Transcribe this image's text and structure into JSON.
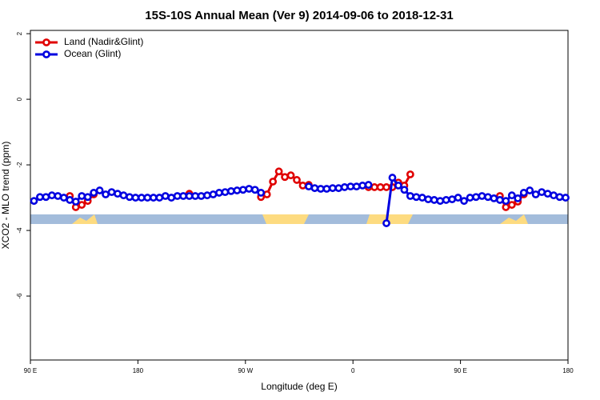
{
  "chart_data": {
    "type": "line",
    "title": "15S-10S Annual Mean (Ver 9)   2014-09-06 to 2018-12-31",
    "xlabel": "Longitude (deg E)",
    "ylabel": "XCO2 - MLO trend (ppm)",
    "x": [
      93,
      98,
      103,
      108,
      113,
      118,
      123,
      128,
      133,
      138,
      143,
      148,
      153,
      158,
      163,
      168,
      173,
      178,
      183,
      188,
      193,
      198,
      203,
      208,
      213,
      218,
      223,
      228,
      233,
      238,
      243,
      248,
      253,
      258,
      263,
      268,
      273,
      278,
      283,
      288,
      293,
      298,
      303,
      308,
      313,
      318,
      323,
      328,
      333,
      338,
      343,
      348,
      353,
      358,
      363,
      368,
      373,
      378,
      383,
      388,
      393,
      398,
      403,
      408,
      413,
      418,
      423,
      428,
      433,
      438,
      443,
      448,
      453,
      458,
      463,
      468,
      473,
      478,
      483,
      488,
      493,
      498,
      503,
      508,
      513,
      518,
      523,
      528,
      533,
      538
    ],
    "series": [
      {
        "name": "Land (Nadir&Glint)",
        "color": "#e00000",
        "values": [
          null,
          null,
          null,
          null,
          null,
          null,
          -2.95,
          -3.29,
          -3.22,
          -3.1,
          -2.9,
          null,
          null,
          null,
          null,
          null,
          null,
          null,
          null,
          null,
          null,
          null,
          null,
          null,
          null,
          null,
          -2.88,
          null,
          null,
          null,
          null,
          null,
          null,
          null,
          null,
          null,
          null,
          null,
          -2.98,
          -2.9,
          -2.51,
          -2.2,
          -2.37,
          -2.32,
          -2.46,
          -2.63,
          -2.61,
          null,
          null,
          null,
          null,
          null,
          null,
          null,
          null,
          null,
          -2.68,
          -2.68,
          -2.68,
          -2.68,
          -2.68,
          -2.54,
          -2.63,
          -2.29,
          null,
          null,
          null,
          null,
          null,
          null,
          null,
          null,
          null,
          null,
          null,
          null,
          null,
          null,
          -2.95,
          -3.29,
          -3.22,
          -3.12,
          -2.9,
          null,
          null,
          null,
          null,
          null,
          null,
          null
        ]
      },
      {
        "name": "Ocean (Glint)",
        "color": "#0000e0",
        "values": [
          -3.1,
          -2.98,
          -2.98,
          -2.93,
          -2.95,
          -3.0,
          -3.07,
          -3.12,
          -2.95,
          -2.98,
          -2.85,
          -2.78,
          -2.9,
          -2.83,
          -2.88,
          -2.93,
          -2.98,
          -3.0,
          -3.0,
          -3.0,
          -3.0,
          -3.0,
          -2.95,
          -3.0,
          -2.95,
          -2.95,
          -2.95,
          -2.95,
          -2.95,
          -2.93,
          -2.9,
          -2.85,
          -2.83,
          -2.8,
          -2.78,
          -2.76,
          -2.73,
          -2.76,
          -2.85,
          null,
          null,
          null,
          null,
          null,
          null,
          null,
          -2.66,
          -2.71,
          -2.73,
          -2.73,
          -2.71,
          -2.71,
          -2.68,
          -2.66,
          -2.66,
          -2.63,
          -2.61,
          null,
          null,
          -3.78,
          -2.39,
          -2.63,
          -2.76,
          -2.95,
          -2.98,
          -3.0,
          -3.05,
          -3.07,
          -3.1,
          -3.07,
          -3.05,
          -3.0,
          -3.1,
          -3.0,
          -2.98,
          -2.95,
          -2.98,
          -3.02,
          -3.07,
          -3.1,
          -2.93,
          -3.02,
          -2.85,
          -2.78,
          -2.9,
          -2.83,
          -2.88,
          -2.93,
          -2.98,
          -3.0
        ]
      }
    ],
    "xlim": [
      90,
      540
    ],
    "xticks": [
      {
        "value": 90,
        "label": "90 E"
      },
      {
        "value": 180,
        "label": "180"
      },
      {
        "value": 270,
        "label": "90 W"
      },
      {
        "value": 360,
        "label": "0"
      },
      {
        "value": 450,
        "label": "90 E"
      },
      {
        "value": 540,
        "label": "180"
      }
    ],
    "ylim": [
      -7.95,
      2.1
    ],
    "yticks": [
      2,
      0,
      -2,
      -4,
      -6
    ],
    "legend": "top-left"
  }
}
